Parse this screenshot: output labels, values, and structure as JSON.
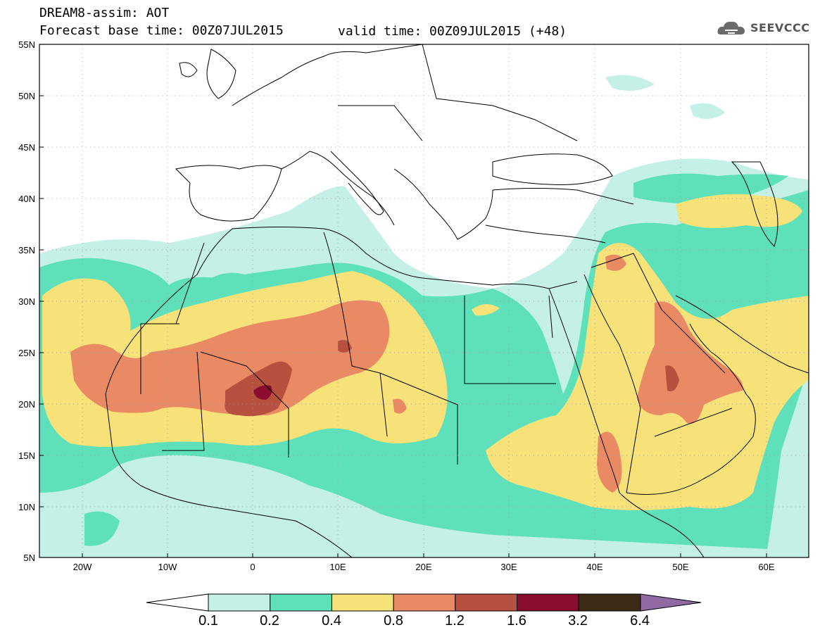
{
  "header": {
    "title_line1": "DREAM8-assim: AOT",
    "title_line2": "Forecast base time: 00Z07JUL2015",
    "valid_time": "valid time: 00Z09JUL2015 (+48)"
  },
  "logo": {
    "text": "SEEVCCC",
    "icon": "cloud-logo-icon"
  },
  "map": {
    "lon_range": [
      -25,
      65
    ],
    "lat_range": [
      5,
      55
    ],
    "lat_labels": [
      "55N",
      "50N",
      "45N",
      "40N",
      "35N",
      "30N",
      "25N",
      "20N",
      "15N",
      "10N",
      "5N"
    ],
    "lon_labels": [
      "20W",
      "10W",
      "0",
      "10E",
      "20E",
      "30E",
      "40E",
      "50E",
      "60E"
    ]
  },
  "colorbar": {
    "labels": [
      "0.1",
      "0.2",
      "0.4",
      "0.8",
      "1.2",
      "1.6",
      "3.2",
      "6.4"
    ],
    "colors": [
      "#ffffff",
      "#c4f0e8",
      "#5ee0bb",
      "#f7e27a",
      "#e98a64",
      "#b7503f",
      "#8a0c2f",
      "#3d2a17",
      "#8f6aa3"
    ]
  }
}
